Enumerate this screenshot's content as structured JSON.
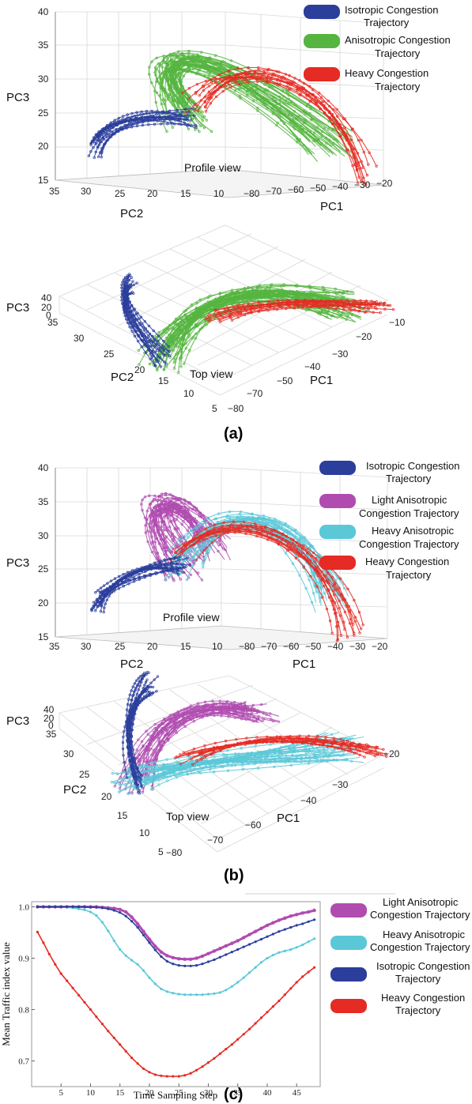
{
  "colors": {
    "isotropic": "#2b3e9c",
    "anisotropic": "#55b540",
    "light_anisotropic": "#b04cb0",
    "heavy_anisotropic": "#5bc8d8",
    "heavy": "#e52b24",
    "grid": "#d8d8d8"
  },
  "panel_a": {
    "label": "(a)",
    "legend": [
      {
        "line1": "Isotropic Congestion",
        "line2": "Trajectory",
        "color": "#2b3e9c"
      },
      {
        "line1": "Anisotropic Congestion",
        "line2": "Trajectory",
        "color": "#55b540"
      },
      {
        "line1": "Heavy Congestion",
        "line2": "Trajectory",
        "color": "#e52b24"
      }
    ],
    "profile": {
      "view": "Profile view",
      "pc3_label": "PC3",
      "pc2_label": "PC2",
      "pc1_label": "PC1",
      "pc3_ticks": [
        "40",
        "35",
        "30",
        "25",
        "20",
        "15"
      ],
      "pc2_ticks": [
        "35",
        "30",
        "25",
        "20",
        "15",
        "10"
      ],
      "pc1_ticks": [
        "−80",
        "−70",
        "−60",
        "−50",
        "−40",
        "−30",
        "−20"
      ]
    },
    "top": {
      "view": "Top view",
      "pc3_label": "PC3",
      "pc2_label": "PC2",
      "pc1_label": "PC1",
      "pc3_ticks": [
        "40",
        "20",
        "0"
      ],
      "pc2_ticks": [
        "35",
        "30",
        "25",
        "20",
        "15",
        "10",
        "5"
      ],
      "pc1_ticks": [
        "−80",
        "−70",
        "−50",
        "−40",
        "−30",
        "−20",
        "−10"
      ]
    }
  },
  "panel_b": {
    "label": "(b)",
    "legend": [
      {
        "line1": "Isotropic Congestion",
        "line2": "Trajectory",
        "color": "#2b3e9c"
      },
      {
        "line1": "Light Anisotropic",
        "line2": "Congestion Trajectory",
        "color": "#b04cb0"
      },
      {
        "line1": "Heavy Anisotropic",
        "line2": "Congestion Trajectory",
        "color": "#5bc8d8"
      },
      {
        "line1": "Heavy Congestion",
        "line2": "Trajectory",
        "color": "#e52b24"
      }
    ],
    "profile": {
      "view": "Profile view",
      "pc3_label": "PC3",
      "pc2_label": "PC2",
      "pc1_label": "PC1",
      "pc3_ticks": [
        "40",
        "35",
        "30",
        "25",
        "20",
        "15"
      ],
      "pc2_ticks": [
        "35",
        "30",
        "25",
        "20",
        "15",
        "10"
      ],
      "pc1_ticks": [
        "−80",
        "−70",
        "−60",
        "−50",
        "−40",
        "−30",
        "−20"
      ]
    },
    "top": {
      "view": "Top view",
      "pc3_label": "PC3",
      "pc2_label": "PC2",
      "pc1_label": "PC1",
      "pc3_ticks": [
        "40",
        "20",
        "0"
      ],
      "pc2_ticks": [
        "35",
        "30",
        "25",
        "20",
        "15",
        "10",
        "5"
      ],
      "pc1_ticks": [
        "−80",
        "−70",
        "−60",
        "−40",
        "−30",
        "−20"
      ]
    }
  },
  "panel_c": {
    "label": "(c)",
    "legend": [
      {
        "line1": "Light Anisotropic",
        "line2": "Congestion Trajectory",
        "color": "#b04cb0"
      },
      {
        "line1": "Heavy Anisotropic",
        "line2": "Congestion Trajectory",
        "color": "#5bc8d8"
      },
      {
        "line1": "Isotropic Congestion",
        "line2": "Trajectory",
        "color": "#2b3e9c"
      },
      {
        "line1": "Heavy Congestion",
        "line2": "Trajectory",
        "color": "#e52b24"
      }
    ]
  },
  "chart_data": {
    "type": "line",
    "xlabel": "Time Sampling Step",
    "ylabel": "Mean Traffic index value",
    "xlim": [
      0,
      49
    ],
    "ylim": [
      0.65,
      1.01
    ],
    "xticks": [
      5,
      10,
      15,
      20,
      25,
      30,
      35,
      40,
      45
    ],
    "yticks": [
      0.7,
      0.8,
      0.9,
      1.0
    ],
    "x": [
      1,
      2,
      3,
      4,
      5,
      6,
      7,
      8,
      9,
      10,
      11,
      12,
      13,
      14,
      15,
      16,
      17,
      18,
      19,
      20,
      21,
      22,
      23,
      24,
      25,
      26,
      27,
      28,
      29,
      30,
      31,
      32,
      33,
      34,
      35,
      36,
      37,
      38,
      39,
      40,
      41,
      42,
      43,
      44,
      45,
      46,
      47,
      48
    ],
    "series": [
      {
        "name": "Light Anisotropic Congestion Trajectory",
        "color": "#b04cb0",
        "values": [
          1.0,
          1.0,
          1.0,
          1.0,
          1.0,
          1.0,
          1.0,
          1.0,
          1.0,
          1.0,
          1.0,
          0.999,
          0.998,
          0.997,
          0.995,
          0.99,
          0.98,
          0.967,
          0.952,
          0.937,
          0.923,
          0.912,
          0.905,
          0.901,
          0.899,
          0.898,
          0.898,
          0.9,
          0.904,
          0.909,
          0.914,
          0.919,
          0.924,
          0.929,
          0.934,
          0.94,
          0.946,
          0.952,
          0.958,
          0.964,
          0.969,
          0.974,
          0.978,
          0.982,
          0.985,
          0.988,
          0.99,
          0.993
        ]
      },
      {
        "name": "Heavy Anisotropic Congestion Trajectory",
        "color": "#5bc8d8",
        "values": [
          1.0,
          1.0,
          1.0,
          1.0,
          1.0,
          0.999,
          0.998,
          0.996,
          0.994,
          0.99,
          0.983,
          0.97,
          0.953,
          0.934,
          0.917,
          0.905,
          0.896,
          0.888,
          0.876,
          0.862,
          0.85,
          0.84,
          0.835,
          0.832,
          0.83,
          0.829,
          0.829,
          0.829,
          0.829,
          0.83,
          0.831,
          0.833,
          0.838,
          0.845,
          0.853,
          0.862,
          0.872,
          0.882,
          0.892,
          0.9,
          0.906,
          0.911,
          0.914,
          0.917,
          0.921,
          0.926,
          0.932,
          0.938
        ]
      },
      {
        "name": "Isotropic Congestion Trajectory",
        "color": "#2b3e9c",
        "values": [
          1.0,
          1.0,
          1.0,
          1.0,
          1.0,
          1.0,
          1.0,
          1.0,
          1.0,
          0.999,
          0.999,
          0.998,
          0.996,
          0.993,
          0.989,
          0.982,
          0.972,
          0.96,
          0.945,
          0.93,
          0.916,
          0.903,
          0.894,
          0.889,
          0.886,
          0.885,
          0.885,
          0.886,
          0.889,
          0.893,
          0.897,
          0.902,
          0.907,
          0.912,
          0.917,
          0.922,
          0.927,
          0.932,
          0.937,
          0.942,
          0.947,
          0.952,
          0.956,
          0.96,
          0.964,
          0.967,
          0.971,
          0.975
        ]
      },
      {
        "name": "Heavy Congestion Trajectory",
        "color": "#e52b24",
        "values": [
          0.951,
          0.93,
          0.908,
          0.888,
          0.87,
          0.856,
          0.842,
          0.828,
          0.814,
          0.8,
          0.786,
          0.772,
          0.758,
          0.745,
          0.732,
          0.719,
          0.706,
          0.695,
          0.685,
          0.678,
          0.673,
          0.671,
          0.67,
          0.67,
          0.67,
          0.672,
          0.676,
          0.682,
          0.689,
          0.697,
          0.705,
          0.714,
          0.723,
          0.732,
          0.742,
          0.752,
          0.762,
          0.773,
          0.784,
          0.795,
          0.806,
          0.817,
          0.829,
          0.841,
          0.853,
          0.864,
          0.873,
          0.882
        ]
      }
    ]
  }
}
